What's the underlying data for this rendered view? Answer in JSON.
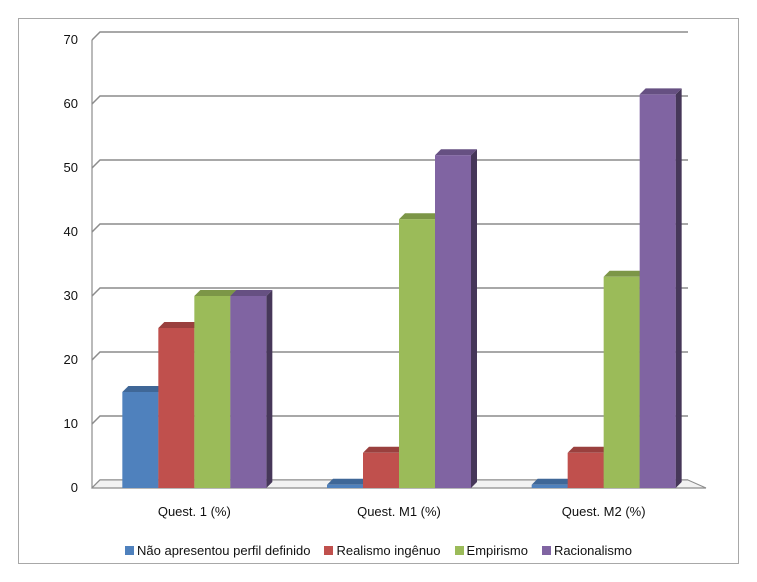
{
  "chart_data": {
    "type": "bar",
    "categories": [
      "Quest. 1 (%)",
      "Quest. M1 (%)",
      "Quest. M2 (%)"
    ],
    "series": [
      {
        "name": "Não apresentou perfil definido",
        "color": "#4f81bd",
        "values": [
          15,
          0.5,
          0.5
        ]
      },
      {
        "name": "Realismo ingênuo",
        "color": "#c0504d",
        "values": [
          25,
          5.5,
          5.5
        ]
      },
      {
        "name": "Empirismo",
        "color": "#9bbb59",
        "values": [
          30,
          42,
          33
        ]
      },
      {
        "name": "Racionalismo",
        "color": "#8064a2",
        "values": [
          30,
          52,
          61.5
        ]
      }
    ],
    "yticks": [
      "0",
      "10",
      "20",
      "30",
      "40",
      "50",
      "60",
      "70"
    ],
    "ylim": [
      0,
      70
    ],
    "grid": true,
    "legend_position": "bottom",
    "style": "3d-bar"
  }
}
